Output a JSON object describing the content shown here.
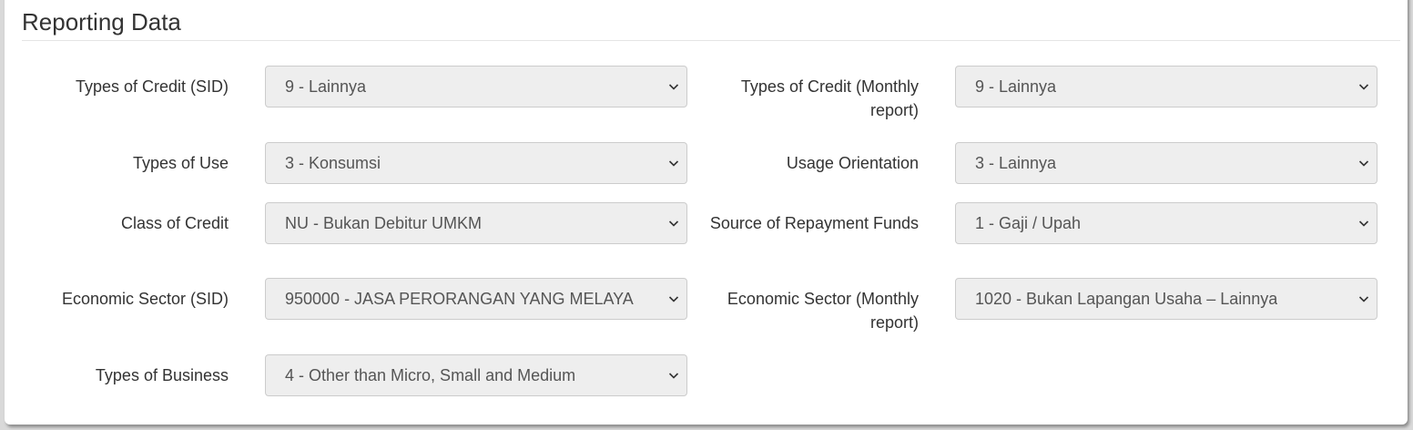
{
  "section_title": "Reporting Data",
  "fields": [
    {
      "label": "Types of Credit (SID)",
      "value": "9 - Lainnya"
    },
    {
      "label": "Types of Credit (Monthly report)",
      "value": "9 - Lainnya"
    },
    {
      "label": "Types of Use",
      "value": "3 - Konsumsi"
    },
    {
      "label": "Usage Orientation",
      "value": "3 - Lainnya"
    },
    {
      "label": "Class of Credit",
      "value": "NU - Bukan Debitur UMKM"
    },
    {
      "label": "Source of Repayment Funds",
      "value": "1 - Gaji / Upah"
    },
    {
      "label": "Economic Sector (SID)",
      "value": "950000 - JASA PERORANGAN YANG MELAYA"
    },
    {
      "label": "Economic Sector (Monthly report)",
      "value": "1020 - Bukan Lapangan Usaha – Lainnya"
    },
    {
      "label": "Types of Business",
      "value": "4 - Other than Micro, Small and Medium"
    }
  ]
}
